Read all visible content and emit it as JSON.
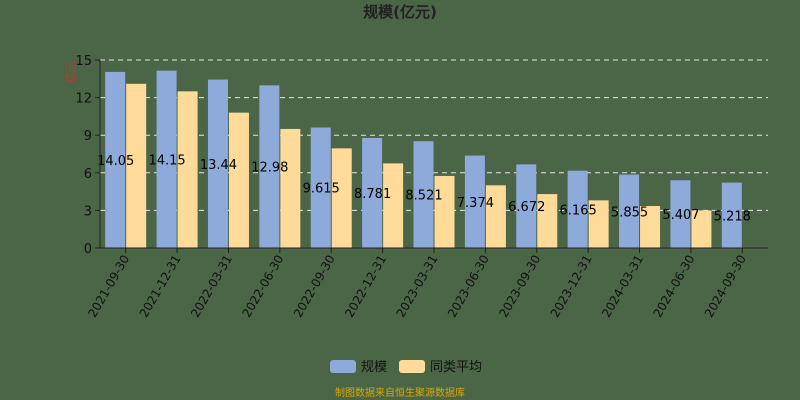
{
  "chart_data": {
    "type": "bar",
    "title": "规模(亿元)",
    "ylabel": "亿元",
    "ylim": [
      0,
      15
    ],
    "yticks": [
      0,
      3,
      6,
      9,
      12,
      15
    ],
    "grid": true,
    "legend_position": "bottom",
    "categories": [
      "2021-09-30",
      "2021-12-31",
      "2022-03-31",
      "2022-06-30",
      "2022-09-30",
      "2022-12-31",
      "2023-03-31",
      "2023-06-30",
      "2023-09-30",
      "2023-12-31",
      "2024-03-31",
      "2024-06-30",
      "2024-09-30"
    ],
    "series": [
      {
        "name": "规模",
        "color": "#8eaadb",
        "values": [
          14.05,
          14.15,
          13.44,
          12.98,
          9.615,
          8.781,
          8.521,
          7.374,
          6.672,
          6.165,
          5.855,
          5.407,
          5.218
        ],
        "labels": [
          "14.05",
          "14.15",
          "13.44",
          "12.98",
          "9.615",
          "8.781",
          "8.521",
          "7.374",
          "6.672",
          "6.165",
          "5.855",
          "5.407",
          "5.218"
        ]
      },
      {
        "name": "同类平均",
        "color": "#ffdb9a",
        "values": [
          13.1,
          12.5,
          10.8,
          9.5,
          7.95,
          6.75,
          5.75,
          5.0,
          4.3,
          3.8,
          3.35,
          3.0,
          null
        ]
      }
    ]
  },
  "footer": {
    "source": "制图数据来自恒生聚源数据库"
  }
}
